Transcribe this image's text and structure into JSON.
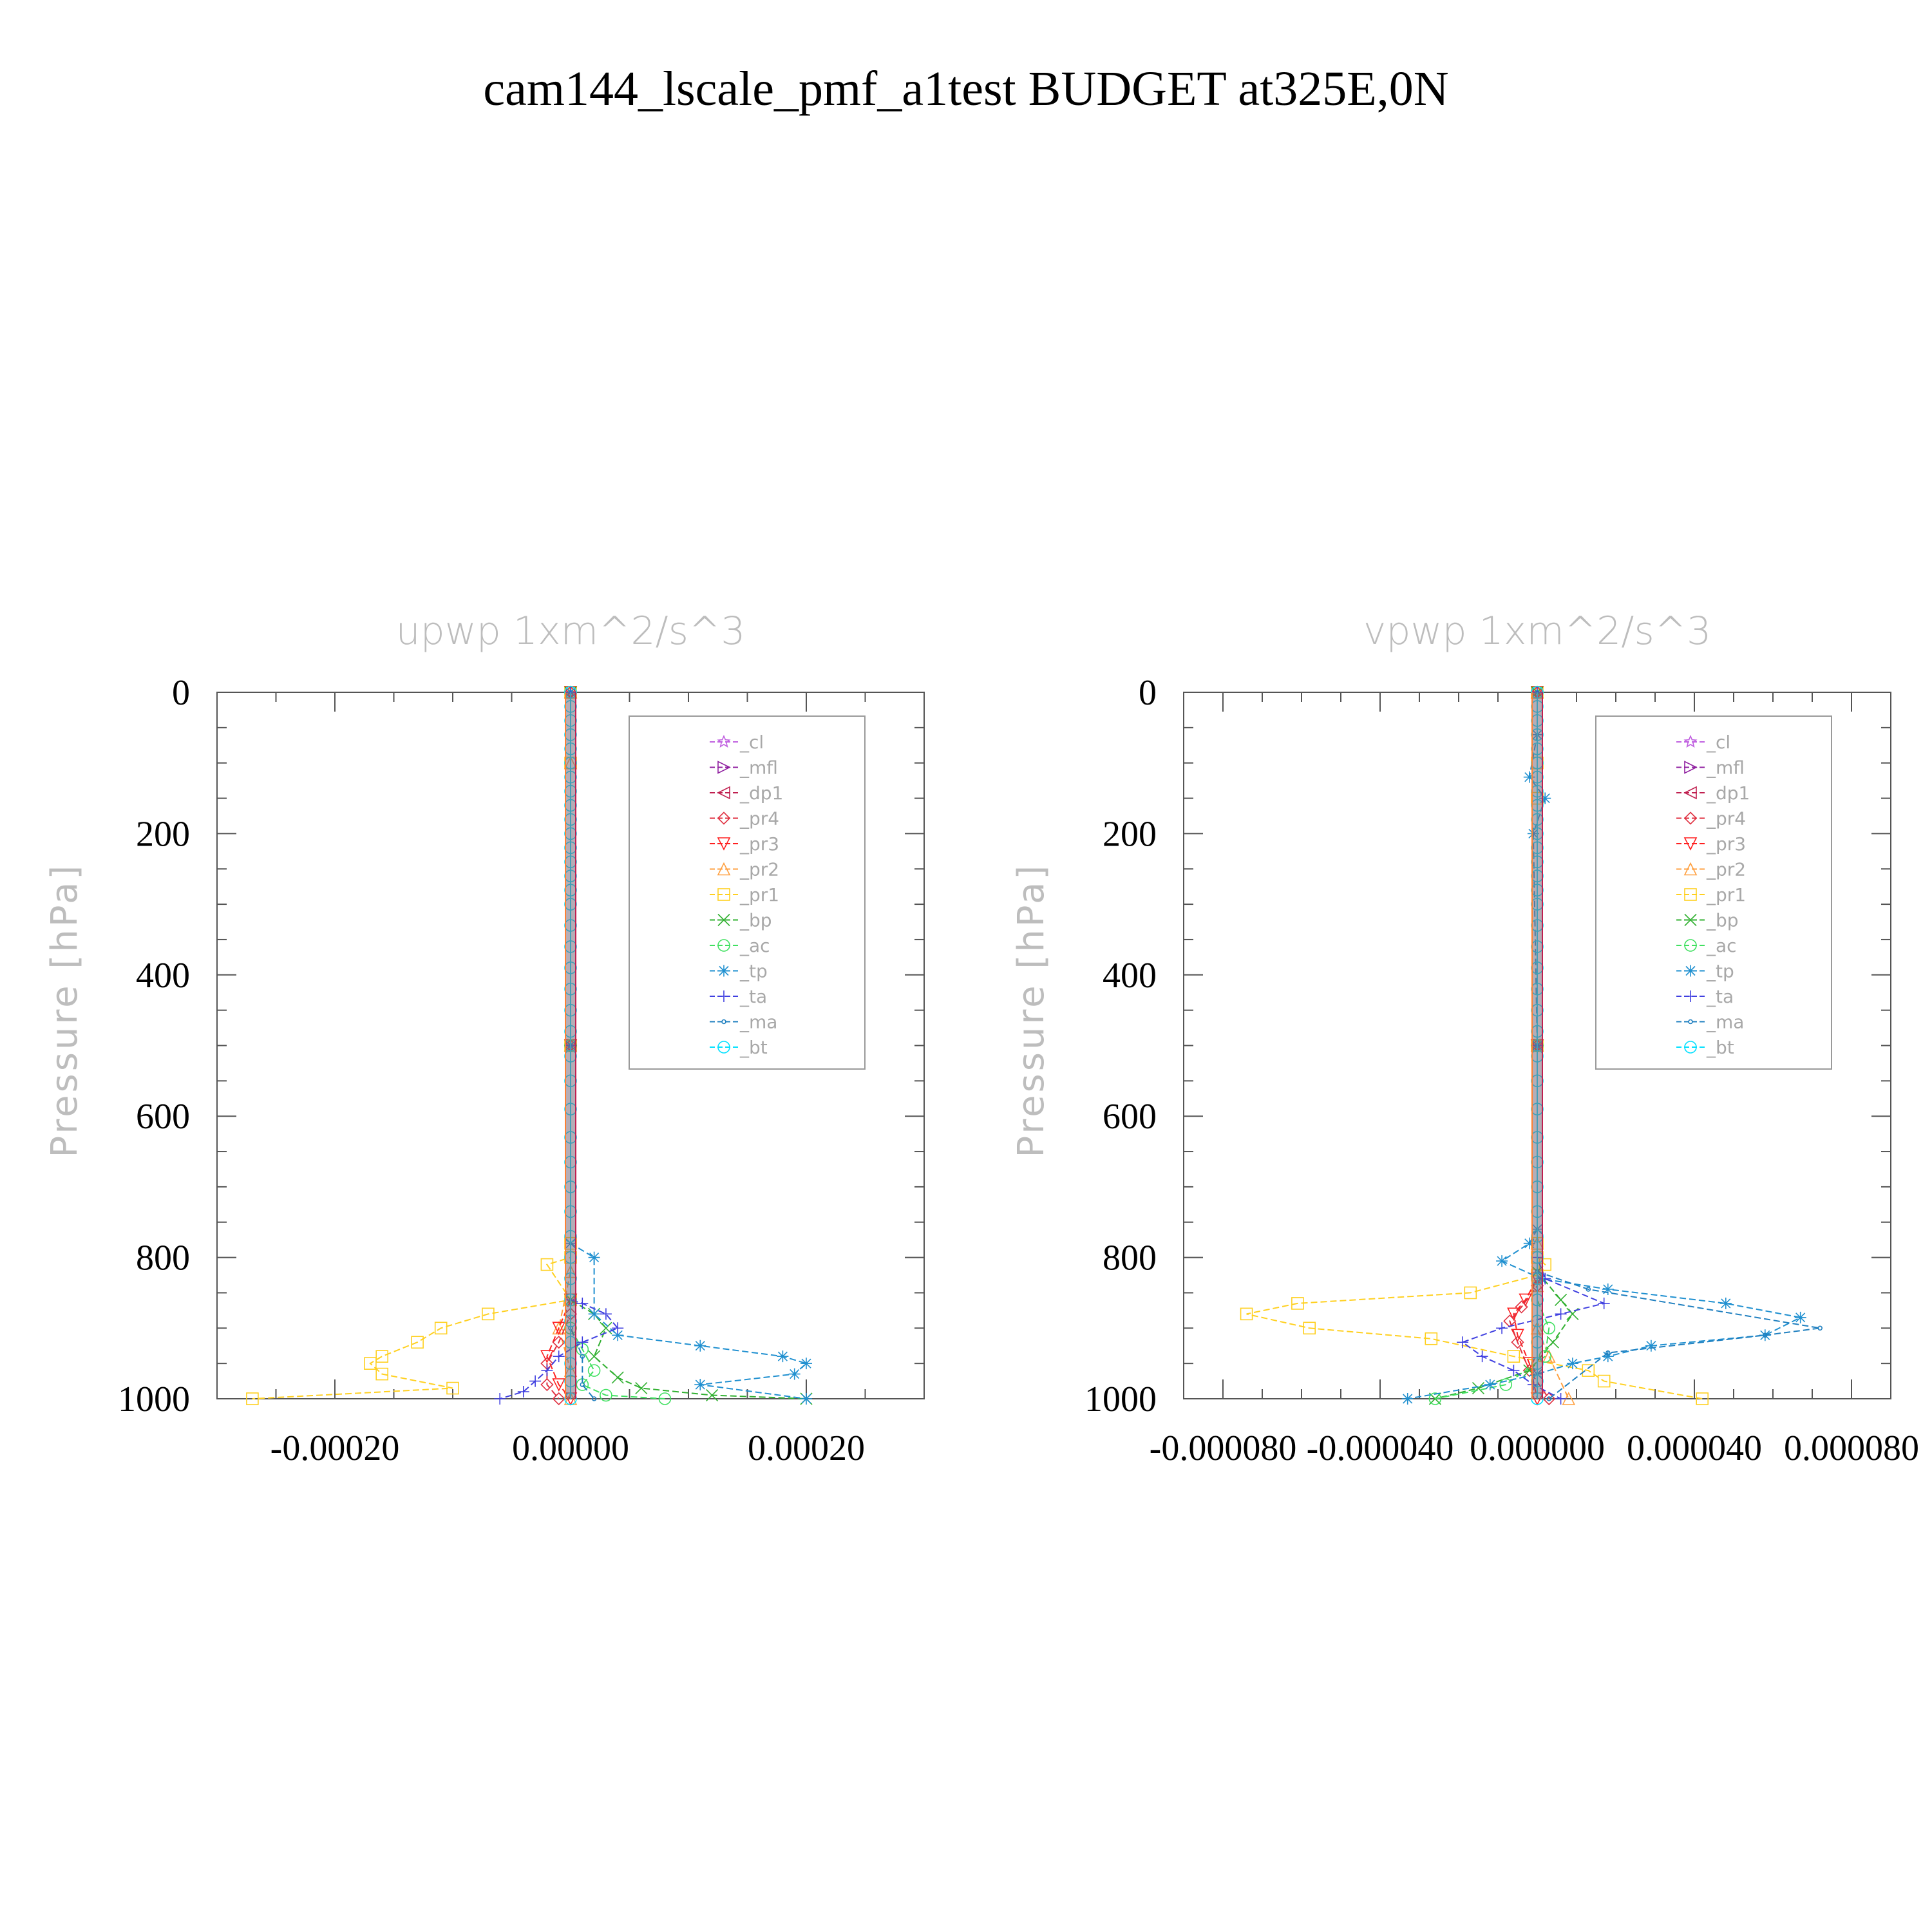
{
  "title": "cam144_lscale_pmf_a1test  BUDGET at325E,0N",
  "legend": [
    {
      "label": "_cl",
      "color": "#c060e0",
      "marker": "star"
    },
    {
      "label": "_mfl",
      "color": "#9020a0",
      "marker": "tri-right"
    },
    {
      "label": "_dp1",
      "color": "#c02050",
      "marker": "tri-left"
    },
    {
      "label": "_pr4",
      "color": "#e03040",
      "marker": "diamond"
    },
    {
      "label": "_pr3",
      "color": "#ff2020",
      "marker": "tri-down"
    },
    {
      "label": "_pr2",
      "color": "#ffa040",
      "marker": "tri-up"
    },
    {
      "label": "_pr1",
      "color": "#ffd020",
      "marker": "square"
    },
    {
      "label": "_bp",
      "color": "#30b030",
      "marker": "x"
    },
    {
      "label": "_ac",
      "color": "#40e060",
      "marker": "circle"
    },
    {
      "label": "_tp",
      "color": "#2090d0",
      "marker": "asterisk"
    },
    {
      "label": "_ta",
      "color": "#4040e0",
      "marker": "plus"
    },
    {
      "label": "_ma",
      "color": "#2080c0",
      "marker": "dot"
    },
    {
      "label": "_bt",
      "color": "#00e0ff",
      "marker": "filled-circle"
    }
  ],
  "chart_data": [
    {
      "type": "line",
      "title": "upwp   1xm^2/s^3",
      "ylabel": "Pressure [hPa]",
      "xlim": [
        -0.0003,
        0.0003
      ],
      "ylim": [
        1000,
        0
      ],
      "y_reversed": true,
      "xticks": [
        "-0.00020",
        "0.00000",
        "0.00020"
      ],
      "xtick_values": [
        -0.0002,
        0.0,
        0.0002
      ],
      "yticks": [
        "0",
        "200",
        "400",
        "600",
        "800",
        "1000"
      ],
      "ytick_values": [
        0,
        200,
        400,
        600,
        800,
        1000
      ],
      "series": [
        {
          "name": "_pr1",
          "x": [
            0,
            0,
            0,
            0,
            0,
            -2e-05,
            0,
            -7e-05,
            -0.00011,
            -0.00013,
            -0.00016,
            -0.00017,
            -0.00016,
            -0.0001,
            -0.00027
          ],
          "y": [
            0,
            100,
            500,
            780,
            800,
            810,
            860,
            880,
            900,
            920,
            940,
            950,
            965,
            985,
            1000
          ]
        },
        {
          "name": "_pr2",
          "x": [
            0,
            0,
            0,
            0,
            -1e-05,
            0,
            0
          ],
          "y": [
            0,
            100,
            500,
            820,
            900,
            960,
            1000
          ]
        },
        {
          "name": "_pr3",
          "x": [
            0,
            0,
            0,
            -1e-05,
            -2e-05,
            -1e-05,
            0
          ],
          "y": [
            0,
            500,
            860,
            900,
            940,
            980,
            1000
          ]
        },
        {
          "name": "_pr4",
          "x": [
            0,
            0,
            0,
            -1e-05,
            -2e-05,
            -2e-05,
            -1e-05
          ],
          "y": [
            0,
            500,
            880,
            920,
            950,
            980,
            1000
          ]
        },
        {
          "name": "_bp",
          "x": [
            0,
            0,
            0,
            2e-05,
            3e-05,
            2e-05,
            4e-05,
            6e-05,
            0.00012,
            0.0002
          ],
          "y": [
            0,
            500,
            860,
            880,
            900,
            940,
            970,
            985,
            995,
            1000
          ]
        },
        {
          "name": "_ac",
          "x": [
            0,
            0,
            0,
            1e-05,
            2e-05,
            1e-05,
            3e-05,
            8e-05
          ],
          "y": [
            0,
            500,
            900,
            930,
            960,
            980,
            995,
            1000
          ]
        },
        {
          "name": "_tp",
          "x": [
            0,
            0,
            0,
            2e-05,
            2e-05,
            4e-05,
            0.00011,
            0.00018,
            0.0002,
            0.00019,
            0.00011,
            0.0002
          ],
          "y": [
            0,
            500,
            780,
            800,
            880,
            910,
            925,
            940,
            950,
            965,
            980,
            1000
          ]
        },
        {
          "name": "_ta",
          "x": [
            0,
            0,
            0,
            1e-05,
            3e-05,
            4e-05,
            1e-05,
            -1e-05,
            -2e-05,
            -3e-05,
            -4e-05,
            -6e-05
          ],
          "y": [
            0,
            500,
            860,
            865,
            880,
            900,
            920,
            940,
            960,
            975,
            990,
            1000
          ]
        },
        {
          "name": "_ma",
          "x": [
            0,
            0,
            0,
            1e-05,
            1e-05,
            2e-05
          ],
          "y": [
            0,
            500,
            900,
            940,
            980,
            1000
          ]
        },
        {
          "name": "_bt",
          "x": [
            0,
            0,
            0,
            0,
            0,
            0,
            0,
            0,
            0,
            0,
            0,
            0,
            0,
            0,
            0,
            0,
            0,
            0,
            0,
            0,
            0,
            0,
            0,
            0,
            0,
            0,
            0,
            0,
            0,
            0,
            0,
            0,
            0,
            0,
            0,
            0,
            0,
            0
          ],
          "y": [
            0,
            20,
            40,
            60,
            80,
            100,
            120,
            140,
            160,
            180,
            200,
            220,
            240,
            260,
            280,
            300,
            330,
            360,
            390,
            420,
            450,
            480,
            515,
            550,
            590,
            630,
            665,
            700,
            735,
            770,
            800,
            830,
            860,
            890,
            920,
            950,
            975,
            1000
          ]
        }
      ]
    },
    {
      "type": "line",
      "title": "vpwp   1xm^2/s^3",
      "ylabel": "Pressure [hPa]",
      "xlim": [
        -9e-05,
        9e-05
      ],
      "ylim": [
        1000,
        0
      ],
      "y_reversed": true,
      "xticks": [
        "-0.000080",
        "-0.000040",
        "0.000000",
        "0.000040",
        "0.000080"
      ],
      "xtick_values": [
        -8e-05,
        -4e-05,
        0.0,
        4e-05,
        8e-05
      ],
      "yticks": [
        "0",
        "200",
        "400",
        "600",
        "800",
        "1000"
      ],
      "ytick_values": [
        0,
        200,
        400,
        600,
        800,
        1000
      ],
      "series": [
        {
          "name": "_pr1",
          "x": [
            0,
            0,
            0,
            0,
            0,
            0,
            2e-06,
            0,
            -1.7e-05,
            -6.1e-05,
            -7.4e-05,
            -5.8e-05,
            -2.7e-05,
            -6e-06,
            1.3e-05,
            1.7e-05,
            4.2e-05
          ],
          "y": [
            0,
            100,
            150,
            500,
            780,
            800,
            810,
            825,
            850,
            865,
            880,
            900,
            915,
            940,
            960,
            975,
            1000
          ]
        },
        {
          "name": "_pr2",
          "x": [
            0,
            0,
            0,
            0,
            0,
            3e-06,
            8e-06
          ],
          "y": [
            0,
            500,
            780,
            840,
            900,
            940,
            1000
          ]
        },
        {
          "name": "_pr3",
          "x": [
            0,
            0,
            0,
            -3e-06,
            -6e-06,
            -5e-06,
            -2e-06,
            0
          ],
          "y": [
            0,
            500,
            830,
            860,
            880,
            910,
            950,
            1000
          ]
        },
        {
          "name": "_pr4",
          "x": [
            0,
            0,
            0,
            -4e-06,
            -7e-06,
            -5e-06,
            -2e-06,
            3e-06
          ],
          "y": [
            0,
            500,
            840,
            870,
            890,
            920,
            960,
            1000
          ]
        },
        {
          "name": "_bp",
          "x": [
            0,
            0,
            0,
            6e-06,
            9e-06,
            4e-06,
            -2e-06,
            -1.5e-05,
            -2.6e-05
          ],
          "y": [
            0,
            500,
            820,
            860,
            880,
            920,
            960,
            985,
            1000
          ]
        },
        {
          "name": "_ac",
          "x": [
            0,
            0,
            0,
            3e-06,
            2e-06,
            -8e-06,
            -2.6e-05
          ],
          "y": [
            0,
            500,
            860,
            900,
            940,
            980,
            1000
          ]
        },
        {
          "name": "_tp",
          "x": [
            0,
            -2e-06,
            2e-06,
            -1e-06,
            0,
            0,
            -2e-06,
            -9e-06,
            1e-06,
            1.8e-05,
            4.8e-05,
            6.7e-05,
            5.8e-05,
            2.9e-05,
            1.8e-05,
            9e-06,
            0,
            -1.2e-05,
            -3.3e-05
          ],
          "y": [
            60,
            120,
            150,
            200,
            500,
            760,
            780,
            805,
            830,
            845,
            865,
            885,
            910,
            925,
            940,
            950,
            965,
            980,
            1000
          ]
        },
        {
          "name": "_ta",
          "x": [
            0,
            0,
            0,
            2e-06,
            1.7e-05,
            6e-06,
            -9e-06,
            -1.9e-05,
            -1.4e-05,
            -6e-06,
            -1e-06,
            6e-06
          ],
          "y": [
            0,
            500,
            800,
            830,
            865,
            880,
            900,
            920,
            940,
            960,
            980,
            1000
          ]
        },
        {
          "name": "_ma",
          "x": [
            0,
            0,
            0,
            1.3e-05,
            7.2e-05,
            5.8e-05,
            1.8e-05,
            3e-06
          ],
          "y": [
            0,
            500,
            820,
            845,
            900,
            910,
            935,
            1000
          ]
        },
        {
          "name": "_bt",
          "x": [
            0,
            0,
            0,
            0,
            0,
            0,
            0,
            0,
            0,
            0,
            0,
            0,
            0,
            0,
            0,
            0,
            0,
            0,
            0,
            0,
            0,
            0,
            0,
            0,
            0,
            0,
            0,
            0,
            0,
            0,
            0,
            0,
            0,
            0,
            0,
            0,
            0,
            0
          ],
          "y": [
            0,
            20,
            40,
            60,
            80,
            100,
            120,
            140,
            160,
            180,
            200,
            220,
            240,
            260,
            280,
            300,
            330,
            360,
            390,
            420,
            450,
            480,
            515,
            550,
            590,
            630,
            665,
            700,
            735,
            770,
            800,
            830,
            860,
            890,
            920,
            950,
            975,
            1000
          ]
        }
      ]
    }
  ]
}
